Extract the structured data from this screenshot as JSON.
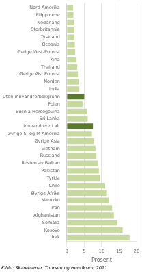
{
  "chart_data": {
    "type": "bar",
    "orientation": "horizontal",
    "categories": [
      "Nord-Amerika",
      "Filippinene",
      "Nederland",
      "Storbritannia",
      "Tyskland",
      "Oseania",
      "Øvrige Vest-Europa",
      "Kina",
      "Thailand",
      "Øvrige Øst Europa",
      "Norden",
      "India",
      "Uten innvandrerbakgrunn",
      "Polen",
      "Bosnia-Hercegovina",
      "Sri Lanka",
      "Innvandrere i alt",
      "Øvrige S- og M-Amerika",
      "Øvrige Asia",
      "Vietnam",
      "Russland",
      "Resten av Balkan",
      "Pakistan",
      "Tyrkia",
      "Chile",
      "Øvrige Afrika",
      "Marokko",
      "Iran",
      "Afghanistan",
      "Somalia",
      "Kosovo",
      "Irak"
    ],
    "values": [
      1.8,
      1.9,
      2.0,
      2.1,
      2.2,
      2.3,
      2.4,
      2.8,
      3.0,
      3.2,
      3.4,
      3.6,
      5.0,
      4.5,
      5.8,
      6.0,
      7.5,
      7.2,
      7.8,
      8.2,
      8.5,
      9.0,
      9.2,
      9.5,
      11.0,
      11.5,
      12.0,
      13.0,
      13.5,
      14.5,
      16.0,
      18.0
    ],
    "colors": [
      "#c8d9a0",
      "#c8d9a0",
      "#c8d9a0",
      "#c8d9a0",
      "#c8d9a0",
      "#c8d9a0",
      "#c8d9a0",
      "#c8d9a0",
      "#c8d9a0",
      "#c8d9a0",
      "#c8d9a0",
      "#c8d9a0",
      "#5a7a2e",
      "#c8d9a0",
      "#c8d9a0",
      "#c8d9a0",
      "#5a7a2e",
      "#c8d9a0",
      "#c8d9a0",
      "#c8d9a0",
      "#c8d9a0",
      "#c8d9a0",
      "#c8d9a0",
      "#c8d9a0",
      "#c8d9a0",
      "#c8d9a0",
      "#c8d9a0",
      "#c8d9a0",
      "#c8d9a0",
      "#c8d9a0",
      "#c8d9a0",
      "#c8d9a0"
    ],
    "xlabel": "Prosent",
    "xlim": [
      0,
      20
    ],
    "xticks": [
      0,
      5,
      10,
      15,
      20
    ],
    "grid": true,
    "annotations": [
      "Kilde: Skarøhamar, Thorsen og Henriksen, 2011."
    ]
  }
}
